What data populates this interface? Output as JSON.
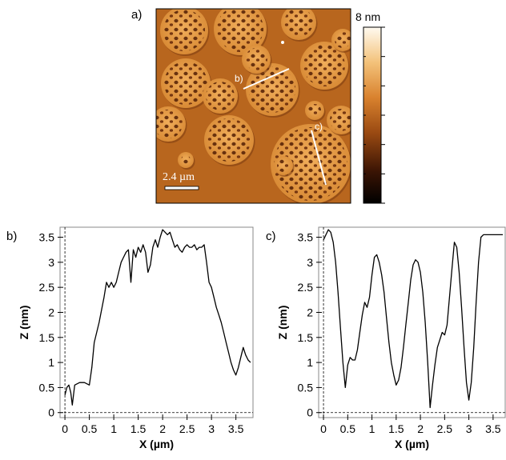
{
  "figure": {
    "panel_a_label": "a)",
    "panel_b_label": "b)",
    "panel_c_label": "c)",
    "afm_line_b_label": "b)",
    "afm_line_c_label": "c)",
    "scale_bar_label": "2.4 µm",
    "colorbar_max_label": "8 nm"
  },
  "colors": {
    "afm_background": "#b8661e",
    "afm_domain": "#e9a24e",
    "afm_pore": "#5a2508",
    "line": "#000000",
    "scan_line": "#ffffff"
  },
  "chart_data": [
    {
      "type": "line",
      "panel": "b)",
      "xlabel": "X (µm)",
      "ylabel": "Z (nm)",
      "xlim": [
        -0.1,
        3.85
      ],
      "ylim": [
        -0.1,
        3.7
      ],
      "xticks": [
        0,
        0.5,
        1,
        1.5,
        2,
        2.5,
        3,
        3.5
      ],
      "xticklabels": [
        "0",
        "0.5",
        "1",
        "1.5",
        "2",
        "2.5",
        "3",
        "3.5"
      ],
      "yticks": [
        0,
        0.5,
        1,
        1.5,
        2,
        2.5,
        3,
        3.5
      ],
      "yticklabels": [
        "0",
        "0.5",
        "1",
        "1.5",
        "2",
        "2.5",
        "3",
        "3.5"
      ],
      "reference_lines": {
        "x": 0,
        "y": 0
      },
      "x": [
        0.0,
        0.04,
        0.08,
        0.12,
        0.15,
        0.2,
        0.3,
        0.4,
        0.5,
        0.55,
        0.6,
        0.7,
        0.8,
        0.85,
        0.9,
        0.95,
        1.0,
        1.05,
        1.1,
        1.15,
        1.2,
        1.25,
        1.3,
        1.35,
        1.4,
        1.45,
        1.5,
        1.55,
        1.6,
        1.65,
        1.7,
        1.75,
        1.8,
        1.85,
        1.9,
        1.95,
        2.0,
        2.05,
        2.1,
        2.15,
        2.2,
        2.25,
        2.3,
        2.35,
        2.4,
        2.45,
        2.5,
        2.55,
        2.6,
        2.65,
        2.7,
        2.75,
        2.8,
        2.85,
        2.9,
        2.95,
        3.0,
        3.05,
        3.1,
        3.15,
        3.2,
        3.25,
        3.3,
        3.35,
        3.4,
        3.45,
        3.5,
        3.55,
        3.6,
        3.65,
        3.7,
        3.75,
        3.8
      ],
      "y": [
        0.35,
        0.5,
        0.55,
        0.4,
        0.15,
        0.55,
        0.6,
        0.6,
        0.55,
        0.9,
        1.4,
        1.8,
        2.3,
        2.6,
        2.5,
        2.6,
        2.5,
        2.6,
        2.8,
        3.0,
        3.1,
        3.2,
        3.25,
        2.6,
        3.25,
        3.1,
        3.3,
        3.2,
        3.35,
        3.2,
        2.8,
        2.95,
        3.3,
        3.45,
        3.3,
        3.5,
        3.65,
        3.6,
        3.55,
        3.6,
        3.45,
        3.3,
        3.35,
        3.25,
        3.2,
        3.3,
        3.35,
        3.3,
        3.3,
        3.35,
        3.25,
        3.3,
        3.3,
        3.35,
        3.0,
        2.6,
        2.5,
        2.3,
        2.1,
        1.95,
        1.8,
        1.6,
        1.4,
        1.2,
        1.0,
        0.85,
        0.75,
        0.9,
        1.1,
        1.3,
        1.15,
        1.05,
        1.0
      ]
    },
    {
      "type": "line",
      "panel": "c)",
      "xlabel": "X (µm)",
      "ylabel": "Z (nm)",
      "xlim": [
        -0.1,
        3.75
      ],
      "ylim": [
        -0.1,
        3.7
      ],
      "xticks": [
        0,
        0.5,
        1,
        1.5,
        2,
        2.5,
        3,
        3.5
      ],
      "xticklabels": [
        "0",
        "0.5",
        "1",
        "1.5",
        "2",
        "2.5",
        "3",
        "3.5"
      ],
      "yticks": [
        0,
        0.5,
        1,
        1.5,
        2,
        2.5,
        3,
        3.5
      ],
      "yticklabels": [
        "0",
        "0.5",
        "1",
        "1.5",
        "2",
        "2.5",
        "3",
        "3.5"
      ],
      "reference_lines": {
        "x": 0,
        "y": 0
      },
      "x": [
        0.0,
        0.05,
        0.1,
        0.15,
        0.2,
        0.25,
        0.3,
        0.35,
        0.4,
        0.45,
        0.5,
        0.55,
        0.6,
        0.65,
        0.7,
        0.75,
        0.8,
        0.85,
        0.9,
        0.95,
        1.0,
        1.05,
        1.1,
        1.15,
        1.2,
        1.25,
        1.3,
        1.35,
        1.4,
        1.45,
        1.5,
        1.55,
        1.6,
        1.65,
        1.7,
        1.75,
        1.8,
        1.85,
        1.9,
        1.95,
        2.0,
        2.05,
        2.1,
        2.15,
        2.2,
        2.25,
        2.3,
        2.35,
        2.4,
        2.45,
        2.5,
        2.55,
        2.6,
        2.65,
        2.7,
        2.75,
        2.8,
        2.85,
        2.9,
        2.95,
        3.0,
        3.05,
        3.1,
        3.15,
        3.2,
        3.25,
        3.3,
        3.35,
        3.4,
        3.45,
        3.5,
        3.55,
        3.6,
        3.65,
        3.7
      ],
      "y": [
        3.45,
        3.55,
        3.65,
        3.6,
        3.4,
        3.0,
        2.4,
        1.7,
        1.0,
        0.5,
        0.95,
        1.1,
        1.05,
        1.05,
        1.25,
        1.6,
        1.95,
        2.2,
        2.1,
        2.3,
        2.75,
        3.1,
        3.15,
        3.0,
        2.75,
        2.4,
        1.9,
        1.4,
        1.0,
        0.75,
        0.55,
        0.65,
        0.9,
        1.3,
        1.75,
        2.2,
        2.65,
        2.95,
        3.05,
        3.0,
        2.8,
        2.4,
        1.8,
        1.0,
        0.1,
        0.55,
        0.95,
        1.3,
        1.45,
        1.6,
        1.55,
        1.75,
        2.3,
        2.85,
        3.4,
        3.3,
        2.8,
        2.1,
        1.3,
        0.6,
        0.25,
        0.6,
        1.3,
        2.2,
        3.0,
        3.5,
        3.55,
        3.55,
        3.55,
        3.55,
        3.55,
        3.55,
        3.55,
        3.55,
        3.55
      ]
    }
  ]
}
